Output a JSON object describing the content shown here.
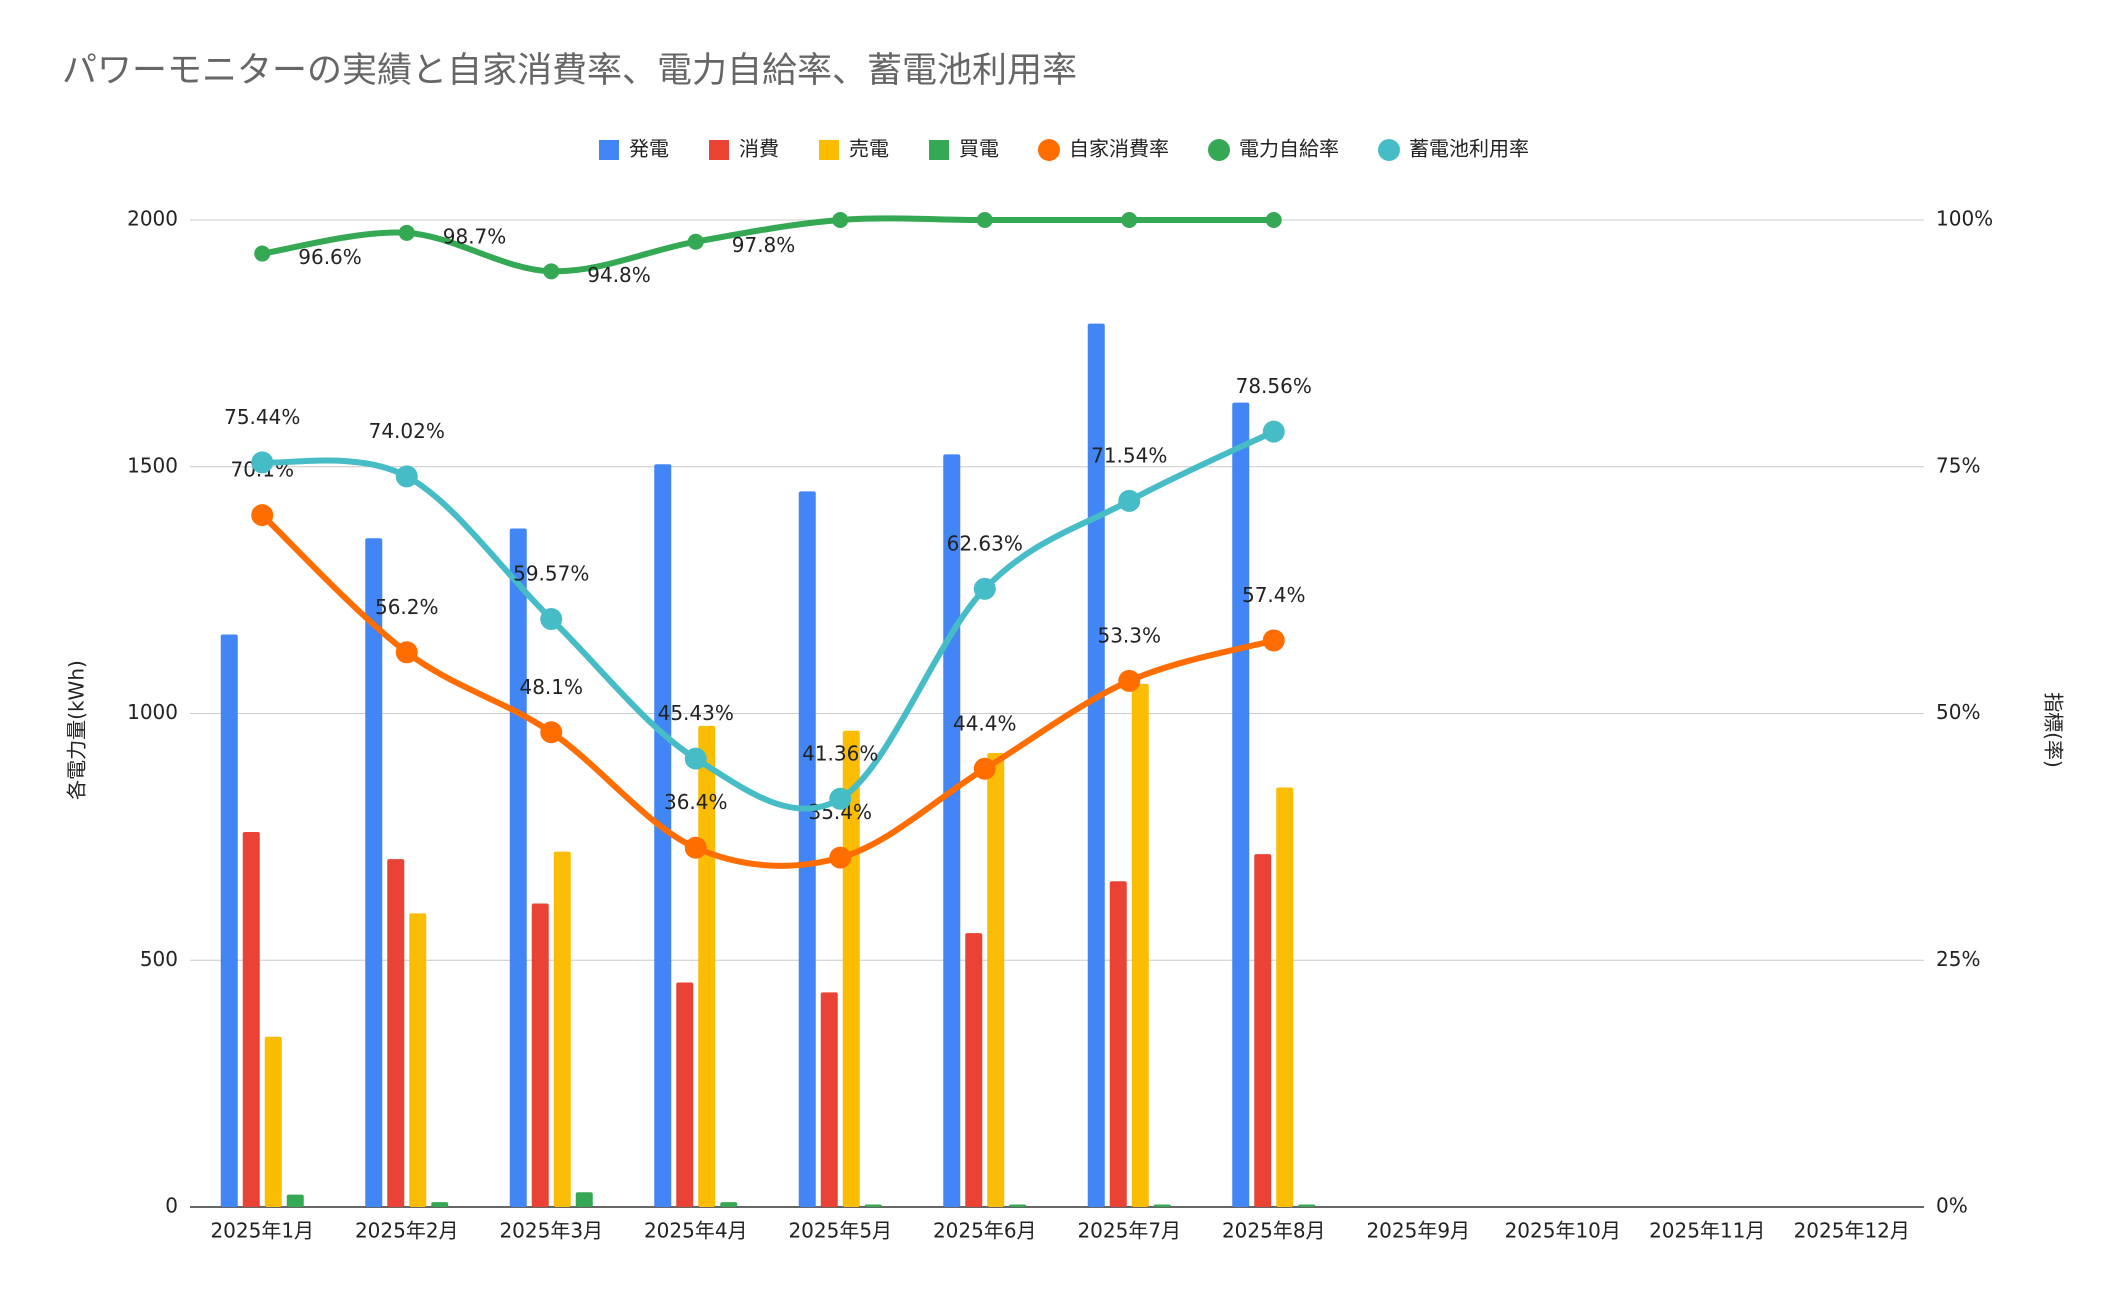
{
  "chart_data": {
    "type": "bar",
    "title": "パワーモニターの実績と自家消費率、電力自給率、蓄電池利用率",
    "y_label": "各電力量(kWh)",
    "y2_label": "指標(率)",
    "categories": [
      "2025年1月",
      "2025年2月",
      "2025年3月",
      "2025年4月",
      "2025年5月",
      "2025年6月",
      "2025年7月",
      "2025年8月",
      "2025年9月",
      "2025年10月",
      "2025年11月",
      "2025年12月"
    ],
    "ylim": [
      0,
      2000
    ],
    "yticks": [
      0,
      500,
      1000,
      1500,
      2000
    ],
    "y2lim": [
      0,
      100
    ],
    "y2ticks": [
      {
        "value": 0,
        "label": "0%"
      },
      {
        "value": 25,
        "label": "25%"
      },
      {
        "value": 50,
        "label": "50%"
      },
      {
        "value": 75,
        "label": "75%"
      },
      {
        "value": 100,
        "label": "100%"
      }
    ],
    "grid": true,
    "legend": "top",
    "series": [
      {
        "name": "発電",
        "type": "bar",
        "color": "#4285f4",
        "values": [
          1160,
          1355,
          1375,
          1505,
          1450,
          1525,
          1790,
          1630,
          null,
          null,
          null,
          null
        ]
      },
      {
        "name": "消費",
        "type": "bar",
        "color": "#ea4335",
        "values": [
          760,
          705,
          615,
          455,
          435,
          555,
          660,
          715,
          null,
          null,
          null,
          null
        ]
      },
      {
        "name": "売電",
        "type": "bar",
        "color": "#fbbc04",
        "values": [
          345,
          595,
          720,
          975,
          965,
          920,
          1060,
          850,
          null,
          null,
          null,
          null
        ]
      },
      {
        "name": "買電",
        "type": "bar",
        "color": "#34a853",
        "values": [
          25,
          10,
          30,
          10,
          5,
          5,
          5,
          5,
          null,
          null,
          null,
          null
        ]
      },
      {
        "name": "自家消費率",
        "type": "line",
        "axis": "y2",
        "color": "#ff6d01",
        "values": [
          70.1,
          56.2,
          48.1,
          36.4,
          35.4,
          44.4,
          53.3,
          57.4,
          null,
          null,
          null,
          null
        ],
        "value_labels": [
          "70.1%",
          "56.2%",
          "48.1%",
          "36.4%",
          "35.4%",
          "44.4%",
          "53.3%",
          "57.4%",
          null,
          null,
          null,
          null
        ]
      },
      {
        "name": "電力自給率",
        "type": "line",
        "axis": "y2",
        "color": "#34a853",
        "values": [
          96.6,
          98.7,
          94.8,
          97.8,
          100,
          100,
          100,
          100,
          null,
          null,
          null,
          null
        ],
        "value_labels": [
          "96.6%",
          "98.7%",
          "94.8%",
          "97.8%",
          null,
          null,
          null,
          null,
          null,
          null,
          null,
          null
        ]
      },
      {
        "name": "蓄電池利用率",
        "type": "line",
        "axis": "y2",
        "color": "#46bdc6",
        "values": [
          75.44,
          74.02,
          59.57,
          45.43,
          41.36,
          62.63,
          71.54,
          78.56,
          null,
          null,
          null,
          null
        ],
        "value_labels": [
          "75.44%",
          "74.02%",
          "59.57%",
          "45.43%",
          "41.36%",
          "62.63%",
          "71.54%",
          "78.56%",
          null,
          null,
          null,
          null
        ]
      }
    ]
  }
}
